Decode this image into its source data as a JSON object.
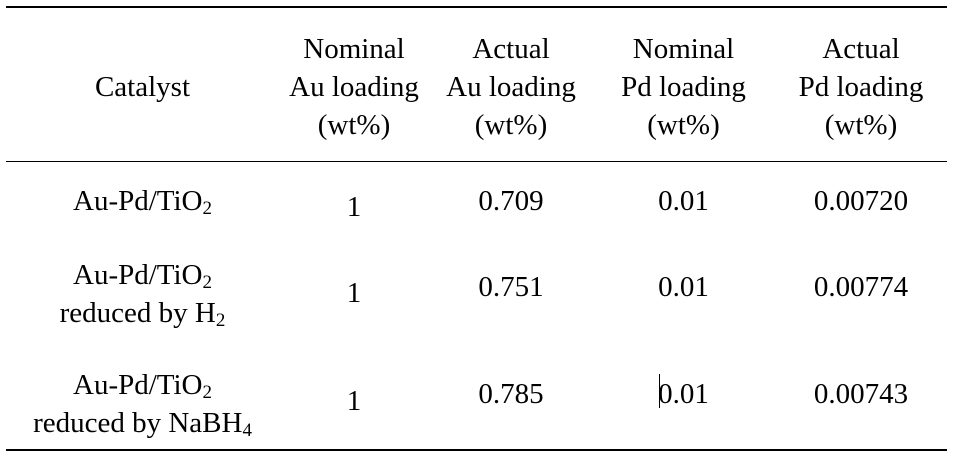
{
  "table": {
    "headers": {
      "catalyst": "Catalyst",
      "nominal_au": [
        "Nominal",
        "Au loading",
        "(wt%)"
      ],
      "actual_au": [
        "Actual",
        "Au loading",
        "(wt%)"
      ],
      "nominal_pd": [
        "Nominal",
        "Pd loading",
        "(wt%)"
      ],
      "actual_pd": [
        "Actual",
        "Pd loading",
        "(wt%)"
      ]
    },
    "rows": [
      {
        "catalyst_line1": "Au-Pd/TiO",
        "catalyst_line1_sub": "2",
        "catalyst_line2": "",
        "catalyst_line2_sub": "",
        "nominal_au": "1",
        "actual_au": "0.709",
        "nominal_pd": "0.01",
        "actual_pd": "0.00720"
      },
      {
        "catalyst_line1": "Au-Pd/TiO",
        "catalyst_line1_sub": "2",
        "catalyst_line2": "reduced by H",
        "catalyst_line2_sub": "2",
        "nominal_au": "1",
        "actual_au": "0.751",
        "nominal_pd": "0.01",
        "actual_pd": "0.00774"
      },
      {
        "catalyst_line1": "Au-Pd/TiO",
        "catalyst_line1_sub": "2",
        "catalyst_line2": "reduced by NaBH",
        "catalyst_line2_sub": "4",
        "nominal_au": "1",
        "actual_au": "0.785",
        "nominal_pd": "0.01",
        "actual_pd": "0.00743"
      }
    ]
  }
}
